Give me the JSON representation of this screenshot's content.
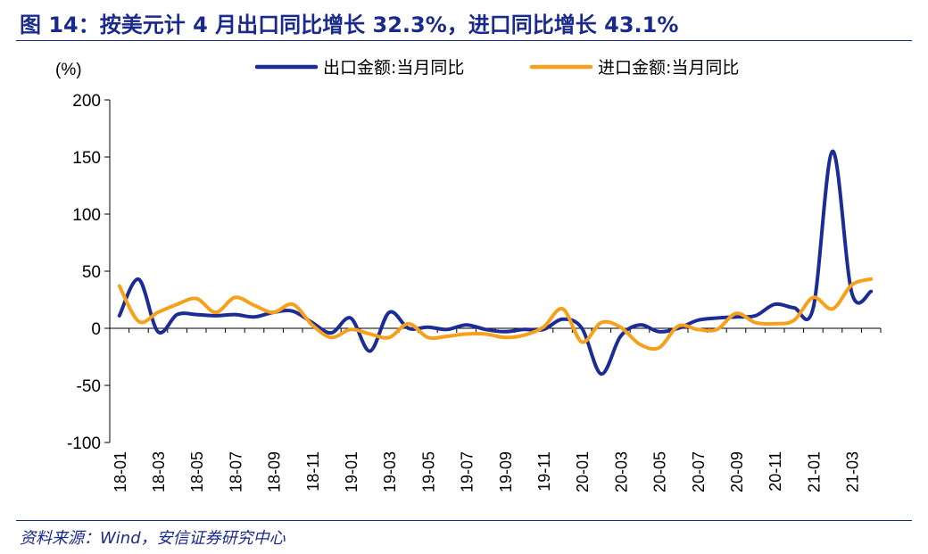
{
  "title": "图 14：按美元计 4 月出口同比增长 32.3%，进口同比增长 43.1%",
  "source": "资料来源：Wind，安信证券研究中心",
  "colors": {
    "export": "#1c2c96",
    "import": "#f7a01b",
    "title": "#1a2a8c"
  },
  "chart_data": {
    "type": "line",
    "unit_label": "(%)",
    "legend_position": "top",
    "ylim": [
      -100,
      200
    ],
    "y_ticks": [
      200,
      150,
      100,
      50,
      0,
      -50,
      -100
    ],
    "x": [
      "18-01",
      "18-02",
      "18-03",
      "18-04",
      "18-05",
      "18-06",
      "18-07",
      "18-08",
      "18-09",
      "18-10",
      "18-11",
      "18-12",
      "19-01",
      "19-02",
      "19-03",
      "19-04",
      "19-05",
      "19-06",
      "19-07",
      "19-08",
      "19-09",
      "19-10",
      "19-11",
      "19-12",
      "20-01",
      "20-02",
      "20-03",
      "20-04",
      "20-05",
      "20-06",
      "20-07",
      "20-08",
      "20-09",
      "20-10",
      "20-11",
      "20-12",
      "21-01",
      "21-02",
      "21-03",
      "21-04"
    ],
    "x_tick_labels": [
      "18-01",
      "18-03",
      "18-05",
      "18-07",
      "18-09",
      "18-11",
      "19-01",
      "19-03",
      "19-05",
      "19-07",
      "19-09",
      "19-11",
      "20-01",
      "20-03",
      "20-05",
      "20-07",
      "20-09",
      "20-11",
      "21-01",
      "21-03"
    ],
    "series": [
      {
        "name": "出口金额:当月同比",
        "color": "#1c2c96",
        "values": [
          11,
          43,
          -3,
          12,
          12,
          11,
          12,
          10,
          14,
          15,
          5,
          -4,
          9,
          -20,
          14,
          0,
          1,
          -1,
          3,
          -1,
          -3,
          -1,
          -1,
          8,
          0,
          -40,
          -7,
          3,
          -3,
          0,
          7,
          9,
          10,
          11,
          21,
          18,
          18,
          155,
          31,
          32.3
        ]
      },
      {
        "name": "进口金额:当月同比",
        "color": "#f7a01b",
        "values": [
          37,
          6,
          14,
          21,
          26,
          14,
          27,
          20,
          14,
          21,
          3,
          -8,
          -1,
          -5,
          -8,
          4,
          -8,
          -7,
          -5,
          -5,
          -8,
          -6,
          1,
          17,
          -12,
          5,
          1,
          -14,
          -17,
          2,
          -1,
          -1,
          13,
          5,
          4,
          7,
          27,
          17,
          38,
          43.1
        ]
      }
    ]
  }
}
